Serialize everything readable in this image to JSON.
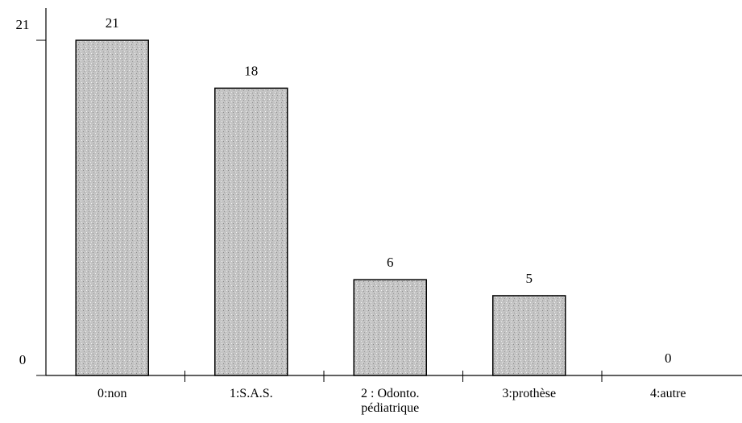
{
  "chart_data": {
    "type": "bar",
    "categories": [
      "0:non",
      "1:S.A.S.",
      "2 : Odonto. pédiatrique",
      "3:prothèse",
      "4:autre"
    ],
    "values": [
      21,
      18,
      6,
      5,
      0
    ],
    "color": "#c4c4c4",
    "ylim": [
      0,
      21
    ],
    "yticks": [
      0,
      21
    ],
    "grid": false
  }
}
